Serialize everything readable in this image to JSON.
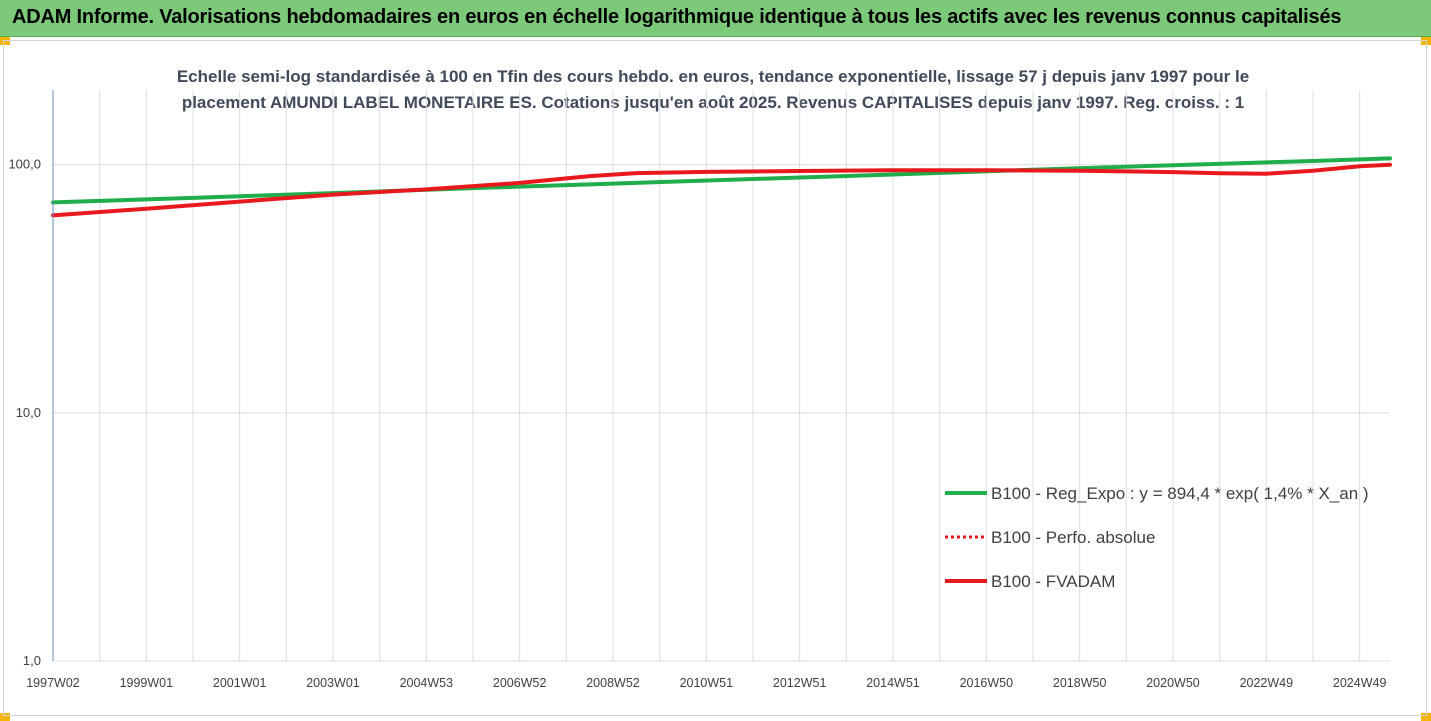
{
  "page": {
    "title": "ADAM Informe. Valorisations hebdomadaires en euros en échelle logarithmique identique à tous les actifs avec les revenus connus capitalisés"
  },
  "colors": {
    "banner": "#7dc97a",
    "corner_accent": "#f5b400",
    "green_series": "#1fae4b",
    "red_series": "#e8191c",
    "gridline": "#dcdcdc",
    "axis": "#6a8fbf"
  },
  "chart_data": {
    "type": "line",
    "title_lines": [
      "Echelle semi-log standardisée à 100 en Tfin des cours hebdo. en euros, tendance exponentielle, lissage 57 j depuis janv 1997 pour le",
      "placement AMUNDI LABEL MONETAIRE ES. Cotations jusqu'en août 2025. Revenus CAPITALISES depuis janv 1997. Reg. croiss. : 1"
    ],
    "y_scale": "log",
    "ylim": [
      1,
      200
    ],
    "y_ticks": [
      {
        "value": 1,
        "label": "1,0"
      },
      {
        "value": 10,
        "label": "10,0"
      },
      {
        "value": 100,
        "label": "100,0"
      }
    ],
    "x_range": [
      1997.0,
      2025.65
    ],
    "x_ticks": [
      {
        "x": 1997.0,
        "label": "1997W02"
      },
      {
        "x": 1999.0,
        "label": "1999W01"
      },
      {
        "x": 2001.0,
        "label": "2001W01"
      },
      {
        "x": 2003.0,
        "label": "2003W01"
      },
      {
        "x": 2005.0,
        "label": "2004W53"
      },
      {
        "x": 2007.0,
        "label": "2006W52"
      },
      {
        "x": 2009.0,
        "label": "2008W52"
      },
      {
        "x": 2011.0,
        "label": "2010W51"
      },
      {
        "x": 2013.0,
        "label": "2012W51"
      },
      {
        "x": 2015.0,
        "label": "2014W51"
      },
      {
        "x": 2017.0,
        "label": "2016W50"
      },
      {
        "x": 2019.0,
        "label": "2018W50"
      },
      {
        "x": 2021.0,
        "label": "2020W50"
      },
      {
        "x": 2023.0,
        "label": "2022W49"
      },
      {
        "x": 2025.0,
        "label": "2024W49"
      }
    ],
    "grid_vertical": true,
    "grid_horizontal": true,
    "legend_position": "right",
    "series": [
      {
        "name": "B100 - Reg_Expo : y = 894,4 * exp( 1,4% *  X_an )",
        "color": "#1fae4b",
        "style": "solid",
        "points": [
          [
            1997.0,
            70.5
          ],
          [
            2000.0,
            73.5
          ],
          [
            2003.0,
            76.8
          ],
          [
            2006.0,
            80.5
          ],
          [
            2009.0,
            83.9
          ],
          [
            2012.0,
            87.6
          ],
          [
            2015.0,
            91.3
          ],
          [
            2018.0,
            95.5
          ],
          [
            2021.0,
            99.5
          ],
          [
            2024.0,
            103.5
          ],
          [
            2025.65,
            106.0
          ]
        ]
      },
      {
        "name": "B100 - Perfo. absolue",
        "color": "#e8191c",
        "style": "dotted",
        "points": []
      },
      {
        "name": "B100 - FVADAM",
        "color": "#e8191c",
        "style": "solid",
        "points": [
          [
            1997.0,
            62.5
          ],
          [
            1999.0,
            66.5
          ],
          [
            2001.0,
            71.0
          ],
          [
            2003.0,
            75.8
          ],
          [
            2005.0,
            79.5
          ],
          [
            2007.0,
            84.5
          ],
          [
            2008.5,
            90.0
          ],
          [
            2009.5,
            92.5
          ],
          [
            2011.0,
            93.5
          ],
          [
            2013.0,
            94.3
          ],
          [
            2015.0,
            95.0
          ],
          [
            2017.0,
            95.0
          ],
          [
            2019.0,
            94.6
          ],
          [
            2021.0,
            93.4
          ],
          [
            2022.0,
            92.4
          ],
          [
            2023.0,
            92.0
          ],
          [
            2024.0,
            94.5
          ],
          [
            2025.0,
            98.5
          ],
          [
            2025.65,
            100.0
          ]
        ]
      }
    ]
  }
}
